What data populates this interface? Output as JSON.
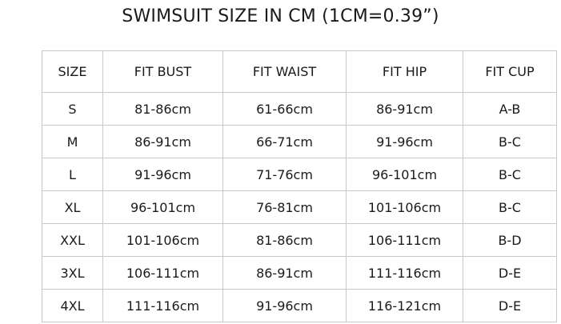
{
  "title": "SWIMSUIT SIZE IN CM  (1CM=0.39”)",
  "headers": [
    "SIZE",
    "FIT BUST",
    "FIT WAIST",
    "FIT HIP",
    "FIT CUP"
  ],
  "rows": [
    [
      "S",
      "81-86cm",
      "61-66cm",
      "86-91cm",
      "A-B"
    ],
    [
      "M",
      "86-91cm",
      "66-71cm",
      "91-96cm",
      "B-C"
    ],
    [
      "L",
      "91-96cm",
      "71-76cm",
      "96-101cm",
      "B-C"
    ],
    [
      "XL",
      "96-101cm",
      "76-81cm",
      "101-106cm",
      "B-C"
    ],
    [
      "XXL",
      "101-106cm",
      "81-86cm",
      "106-111cm",
      "B-D"
    ],
    [
      "3XL",
      "106-111cm",
      "86-91cm",
      "111-116cm",
      "D-E"
    ],
    [
      "4XL",
      "111-116cm",
      "91-96cm",
      "116-121cm",
      "D-E"
    ]
  ]
}
